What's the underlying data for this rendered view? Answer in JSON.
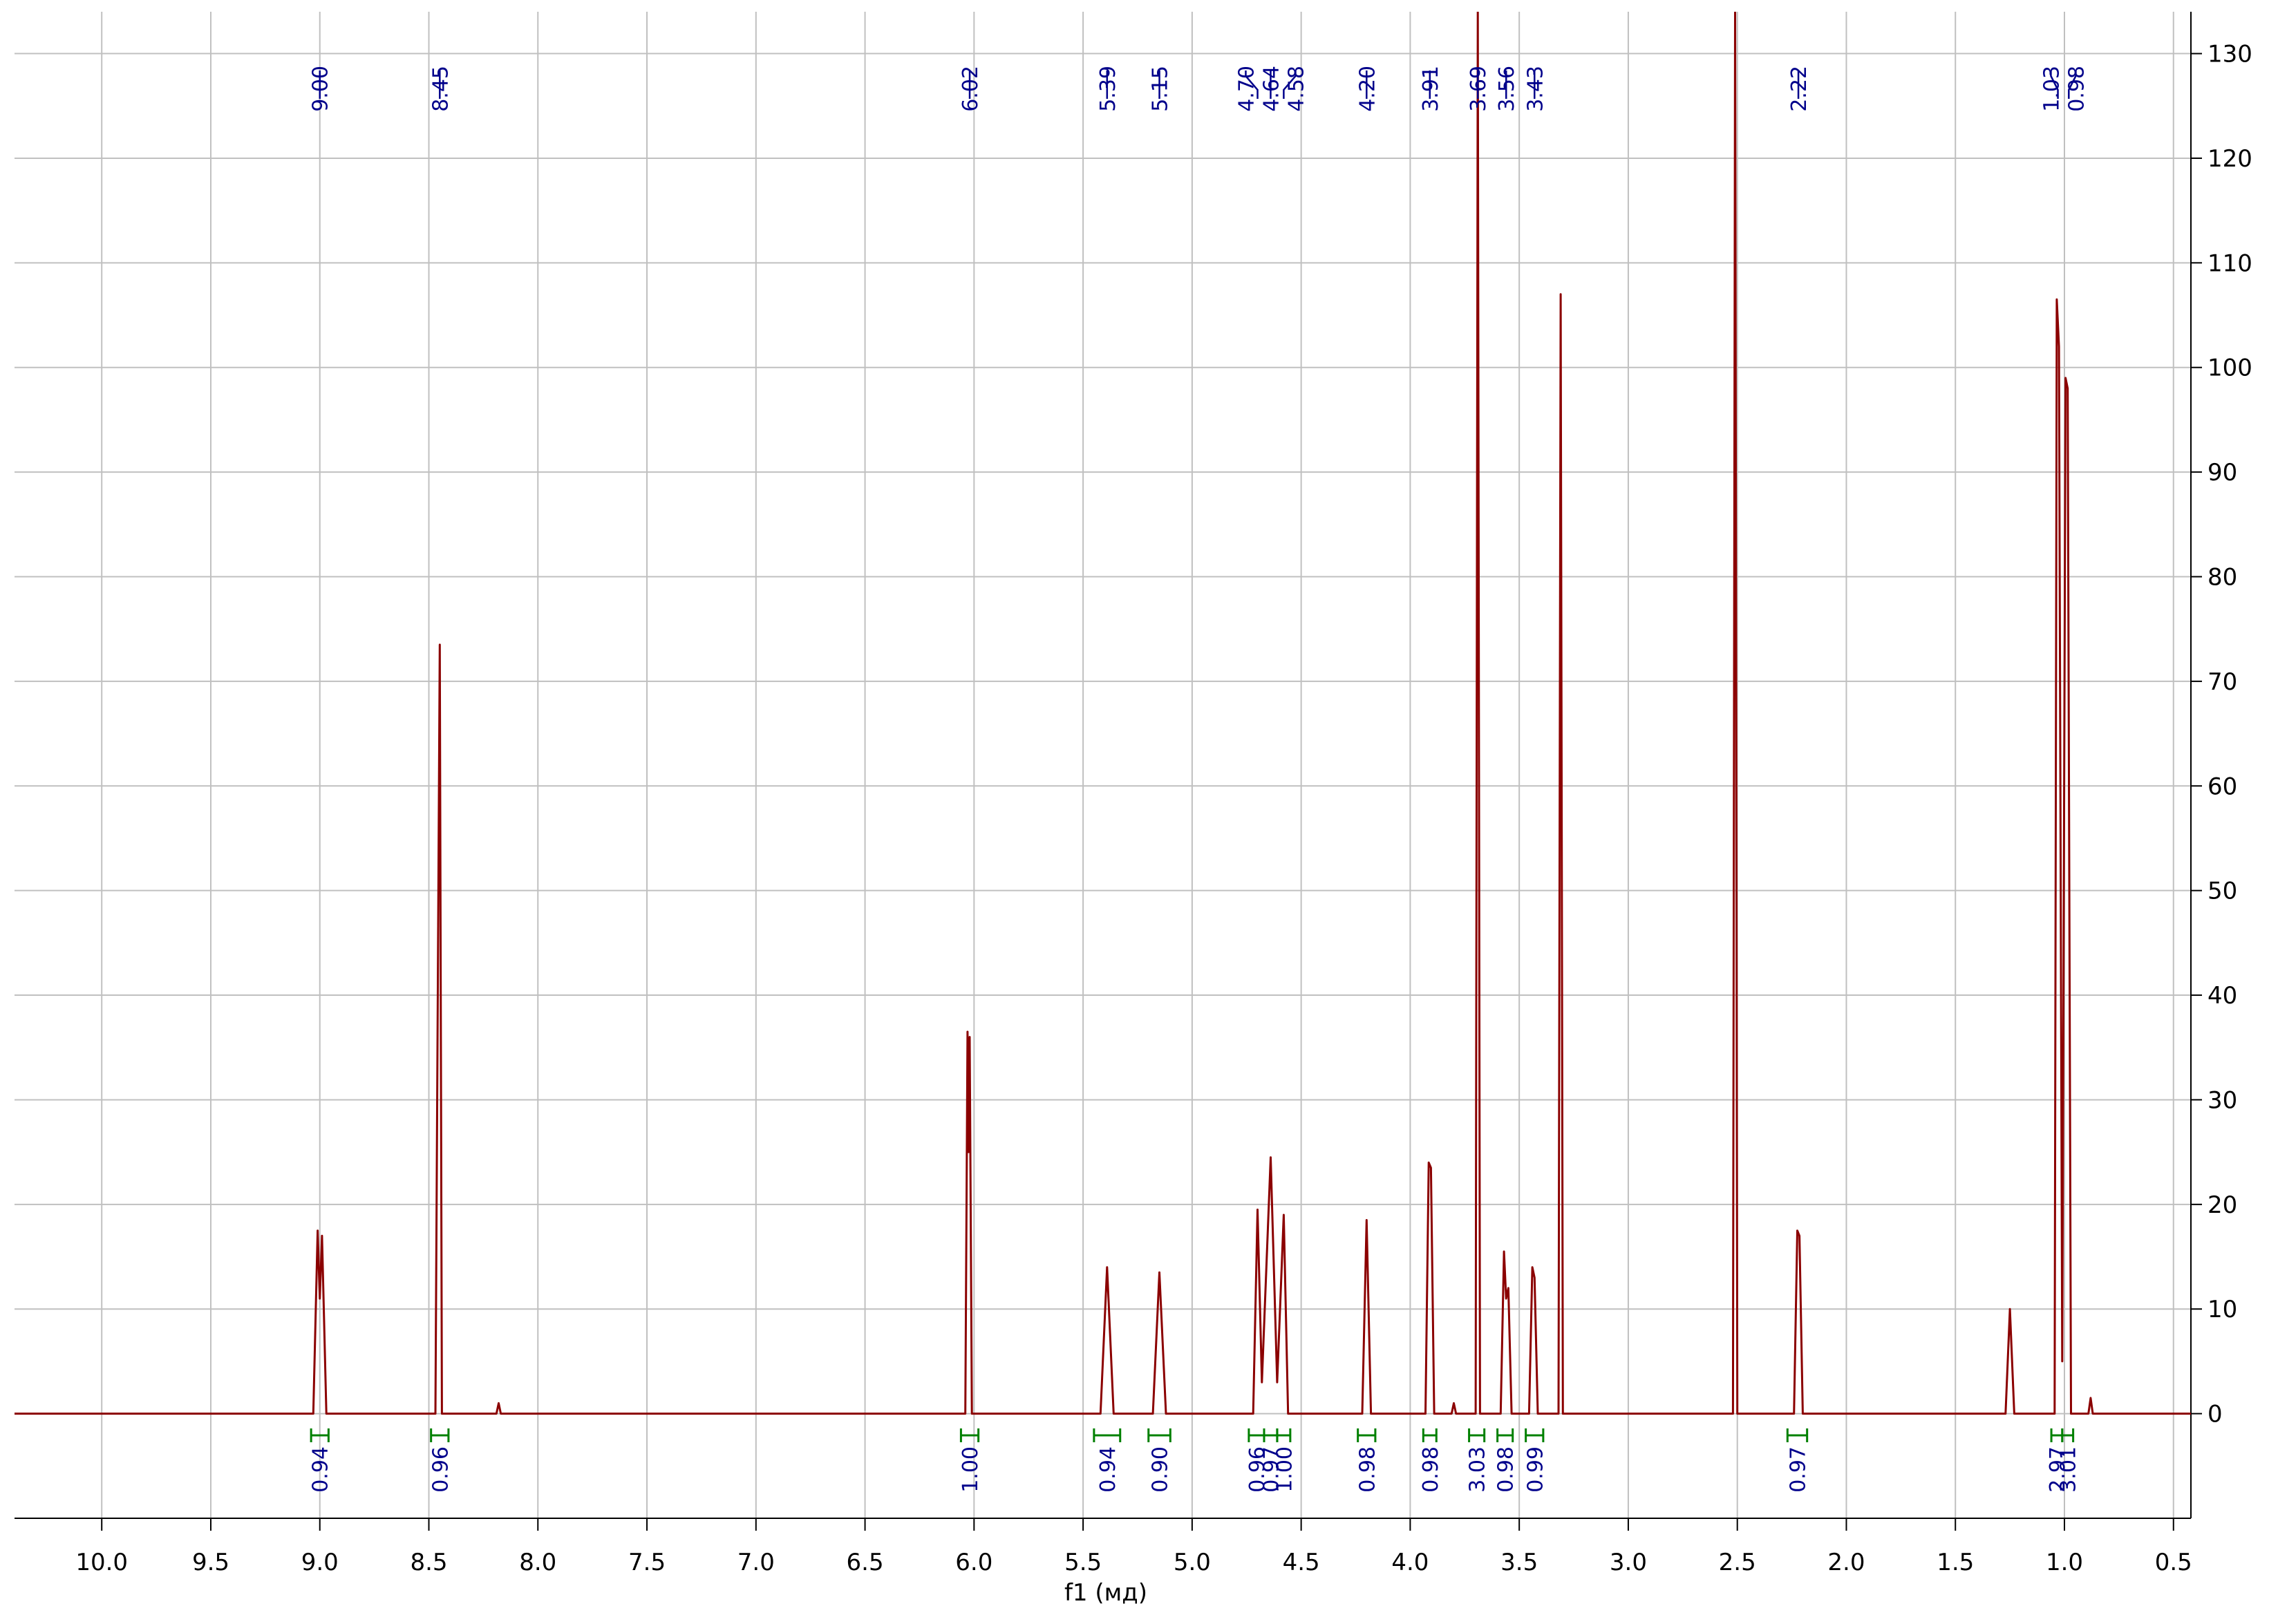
{
  "chart_data": {
    "type": "line",
    "xlabel": "f1 (мд)",
    "color": "#8b0000",
    "grid": true,
    "x": [
      10.4,
      9.03,
      9.01,
      9.0,
      8.99,
      8.97,
      8.47,
      8.45,
      8.44,
      8.19,
      8.18,
      8.17,
      6.04,
      6.03,
      6.025,
      6.02,
      6.01,
      5.42,
      5.39,
      5.36,
      5.18,
      5.15,
      5.12,
      4.72,
      4.7,
      4.68,
      4.64,
      4.61,
      4.58,
      4.56,
      4.22,
      4.2,
      4.18,
      3.93,
      3.915,
      3.905,
      3.89,
      3.81,
      3.8,
      3.79,
      3.7,
      3.69,
      3.68,
      3.585,
      3.57,
      3.56,
      3.55,
      3.535,
      3.455,
      3.44,
      3.43,
      3.415,
      3.32,
      3.31,
      3.3,
      2.52,
      2.51,
      2.5,
      2.24,
      2.225,
      2.215,
      2.2,
      1.27,
      1.25,
      1.23,
      1.045,
      1.035,
      1.025,
      1.01,
      0.995,
      0.985,
      0.97,
      0.89,
      0.88,
      0.87,
      0.42
    ],
    "values": [
      0,
      0,
      17.5,
      11,
      17,
      0,
      0,
      73.5,
      0,
      0,
      1,
      0,
      0,
      36.5,
      25,
      36,
      0,
      0,
      14,
      0,
      0,
      13.5,
      0,
      0,
      19.5,
      3,
      24.5,
      3,
      19,
      0,
      0,
      18.5,
      0,
      0,
      24,
      23.5,
      0,
      0,
      1,
      0,
      0,
      134,
      0,
      0,
      15.5,
      11,
      12,
      0,
      0,
      14,
      13,
      0,
      0,
      107,
      0,
      0,
      134,
      0,
      0,
      17.5,
      17,
      0,
      0,
      10,
      0,
      0,
      106.5,
      102,
      5,
      99,
      98,
      0,
      0,
      1.5,
      0,
      0
    ],
    "xlim": [
      10.4,
      0.42
    ],
    "xticks": [
      {
        "value": 10,
        "label": "10.0"
      },
      9.5,
      {
        "value": 9,
        "label": "9.0"
      },
      8.5,
      {
        "value": 8,
        "label": "8.0"
      },
      7.5,
      {
        "value": 7,
        "label": "7.0"
      },
      6.5,
      {
        "value": 6,
        "label": "6.0"
      },
      5.5,
      {
        "value": 5,
        "label": "5.0"
      },
      4.5,
      {
        "value": 4,
        "label": "4.0"
      },
      3.5,
      {
        "value": 3,
        "label": "3.0"
      },
      2.5,
      {
        "value": 2,
        "label": "2.0"
      },
      1.5,
      {
        "value": 1,
        "label": "1.0"
      },
      0.5
    ],
    "ylim": [
      -10,
      134
    ],
    "yticks": [
      0,
      10,
      20,
      30,
      40,
      50,
      60,
      70,
      80,
      90,
      100,
      110,
      120,
      130
    ],
    "peak_labels": [
      {
        "value": 9,
        "label": "9.00"
      },
      8.45,
      6.02,
      5.39,
      5.15,
      {
        "value": 4.7,
        "label": "4.70"
      },
      4.64,
      4.58,
      {
        "value": 4.2,
        "label": "4.20"
      },
      3.91,
      3.69,
      3.56,
      3.43,
      2.22,
      1.03,
      0.98
    ],
    "integrals": [
      {
        "value": 0.94,
        "label": "0.94",
        "range": [
          9.04,
          8.96
        ]
      },
      {
        "value": 0.96,
        "label": "0.96",
        "range": [
          8.49,
          8.41
        ]
      },
      {
        "value": 1,
        "label": "1.00",
        "range": [
          6.06,
          5.98
        ]
      },
      {
        "value": 0.94,
        "label": "0.94",
        "range": [
          5.45,
          5.33
        ]
      },
      {
        "value": 0.9,
        "label": "0.90",
        "range": [
          5.2,
          5.1
        ]
      },
      {
        "value": 0.96,
        "label": "0.96",
        "range": [
          4.74,
          4.67
        ]
      },
      {
        "value": 0.97,
        "label": "0.97",
        "range": [
          4.67,
          4.61
        ]
      },
      {
        "value": 1,
        "label": "1.00",
        "range": [
          4.61,
          4.55
        ]
      },
      {
        "value": 0.98,
        "label": "0.98",
        "range": [
          4.24,
          4.16
        ]
      },
      {
        "value": 0.98,
        "label": "0.98",
        "range": [
          3.94,
          3.88
        ]
      },
      {
        "value": 3.03,
        "label": "3.03",
        "range": [
          3.73,
          3.66
        ]
      },
      {
        "value": 0.98,
        "label": "0.98",
        "range": [
          3.6,
          3.53
        ]
      },
      {
        "value": 0.99,
        "label": "0.99",
        "range": [
          3.47,
          3.39
        ]
      },
      {
        "value": 0.97,
        "label": "0.97",
        "range": [
          2.27,
          2.18
        ]
      },
      {
        "value": 2.97,
        "label": "2.97",
        "range": [
          1.06,
          1.01
        ]
      },
      {
        "value": 3.01,
        "label": "3.01",
        "range": [
          1.01,
          0.96
        ]
      }
    ]
  }
}
